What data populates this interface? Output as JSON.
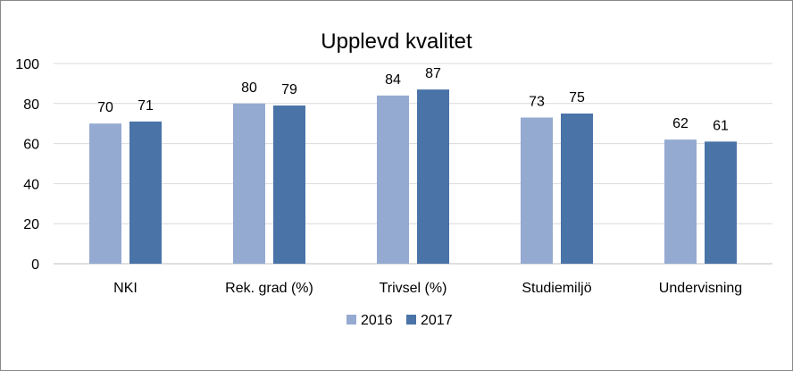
{
  "chart_data": {
    "type": "bar",
    "title": "Upplevd kvalitet",
    "categories": [
      "NKI",
      "Rek. grad (%)",
      "Trivsel (%)",
      "Studiemiljö",
      "Undervisning"
    ],
    "series": [
      {
        "name": "2016",
        "values": [
          70,
          80,
          84,
          73,
          62
        ],
        "color": "#95aad1"
      },
      {
        "name": "2017",
        "values": [
          71,
          79,
          87,
          75,
          61
        ],
        "color": "#4a73a8"
      }
    ],
    "ylim": [
      0,
      100
    ],
    "yticks": [
      0,
      20,
      40,
      60,
      80,
      100
    ],
    "grid": true,
    "legend_position": "bottom"
  }
}
